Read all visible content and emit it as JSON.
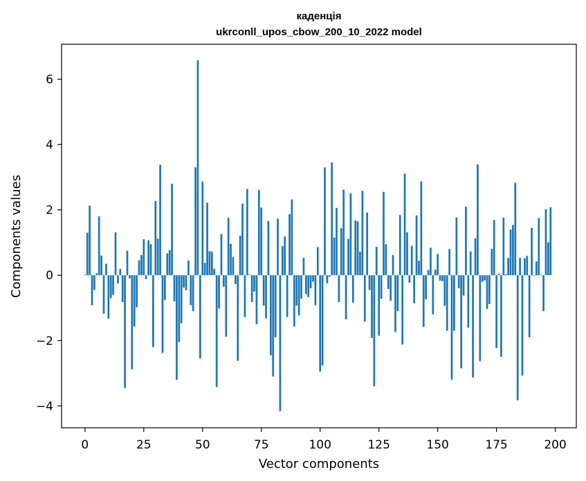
{
  "chart_data": {
    "type": "bar",
    "title": "каденція",
    "subtitle": "ukrconll_upos_cbow_200_10_2022 model",
    "xlabel": "Vector components",
    "ylabel": "Components values",
    "xlim": [
      -9.95,
      208.95
    ],
    "ylim": [
      -4.67,
      7.07
    ],
    "xticks": [
      0,
      25,
      50,
      75,
      100,
      125,
      150,
      175,
      200
    ],
    "yticks": [
      -4,
      -2,
      0,
      2,
      4,
      6
    ],
    "ytick_labels": [
      "−4",
      "−2",
      "0",
      "2",
      "4",
      "6"
    ],
    "grid": false,
    "bar_color": "#1f77b4",
    "values": [
      0.02,
      1.3,
      2.13,
      -0.92,
      -0.45,
      0.06,
      1.8,
      0.6,
      -1.18,
      0.35,
      -1.33,
      -0.7,
      -0.6,
      1.31,
      -0.25,
      0.19,
      -0.82,
      -3.45,
      0.75,
      -0.1,
      -2.88,
      -1.57,
      -0.98,
      0.46,
      0.62,
      1.1,
      -0.12,
      1.07,
      0.95,
      -2.2,
      2.27,
      1.12,
      3.38,
      -2.38,
      -0.76,
      0.67,
      0.77,
      2.8,
      -0.8,
      -3.2,
      -2.05,
      -1.47,
      -0.38,
      -0.46,
      0.45,
      -0.92,
      -1.1,
      3.3,
      6.58,
      -2.55,
      2.87,
      0.38,
      2.22,
      0.74,
      0.72,
      0.2,
      -3.42,
      -1.02,
      1.26,
      -0.35,
      -1.88,
      1.76,
      0.96,
      0.55,
      -0.27,
      -2.62,
      1.21,
      2.19,
      -1.28,
      2.64,
      0.02,
      -0.82,
      -0.5,
      -1.5,
      2.61,
      2.07,
      -0.93,
      -1.32,
      1.66,
      -2.45,
      -3.1,
      -1.9,
      1.73,
      -4.16,
      0.89,
      1.19,
      -1.28,
      1.87,
      2.32,
      -1.57,
      -0.93,
      -1.23,
      -0.72,
      0.53,
      -0.58,
      -0.67,
      -0.4,
      -0.2,
      -0.92,
      0.86,
      -2.95,
      -2.76,
      3.3,
      -0.25,
      -0.05,
      3.45,
      1.15,
      2.06,
      -0.82,
      1.44,
      2.62,
      -1.35,
      1.11,
      2.51,
      -0.84,
      1.68,
      1.65,
      0.72,
      2.58,
      -1.42,
      1.92,
      -0.45,
      -1.92,
      -3.4,
      0.87,
      -1.85,
      -0.72,
      2.55,
      0.95,
      -0.42,
      -0.78,
      0.62,
      -1.74,
      -1.1,
      1.84,
      -2.12,
      3.11,
      1.31,
      -0.23,
      0.9,
      -0.86,
      1.83,
      0.44,
      2.87,
      -1.58,
      -0.74,
      0.16,
      0.84,
      -1.2,
      0.17,
      0.65,
      -0.17,
      -0.18,
      -0.94,
      -1.7,
      0.8,
      -3.2,
      -1.7,
      1.77,
      -0.4,
      -2.85,
      -0.62,
      2.1,
      -1.6,
      0.73,
      -3.13,
      1.13,
      3.39,
      -2.63,
      -0.2,
      -0.16,
      -1.03,
      -0.88,
      0.81,
      1.69,
      -2.23,
      0.05,
      -2.5,
      1.76,
      0.03,
      0.53,
      1.4,
      1.54,
      2.83,
      -3.83,
      0.53,
      -3.07,
      0.52,
      0.59,
      -1.9,
      1.45,
      -0.02,
      0.42,
      1.75,
      0.02,
      -1.1,
      2.02,
      1.01,
      2.08
    ]
  }
}
